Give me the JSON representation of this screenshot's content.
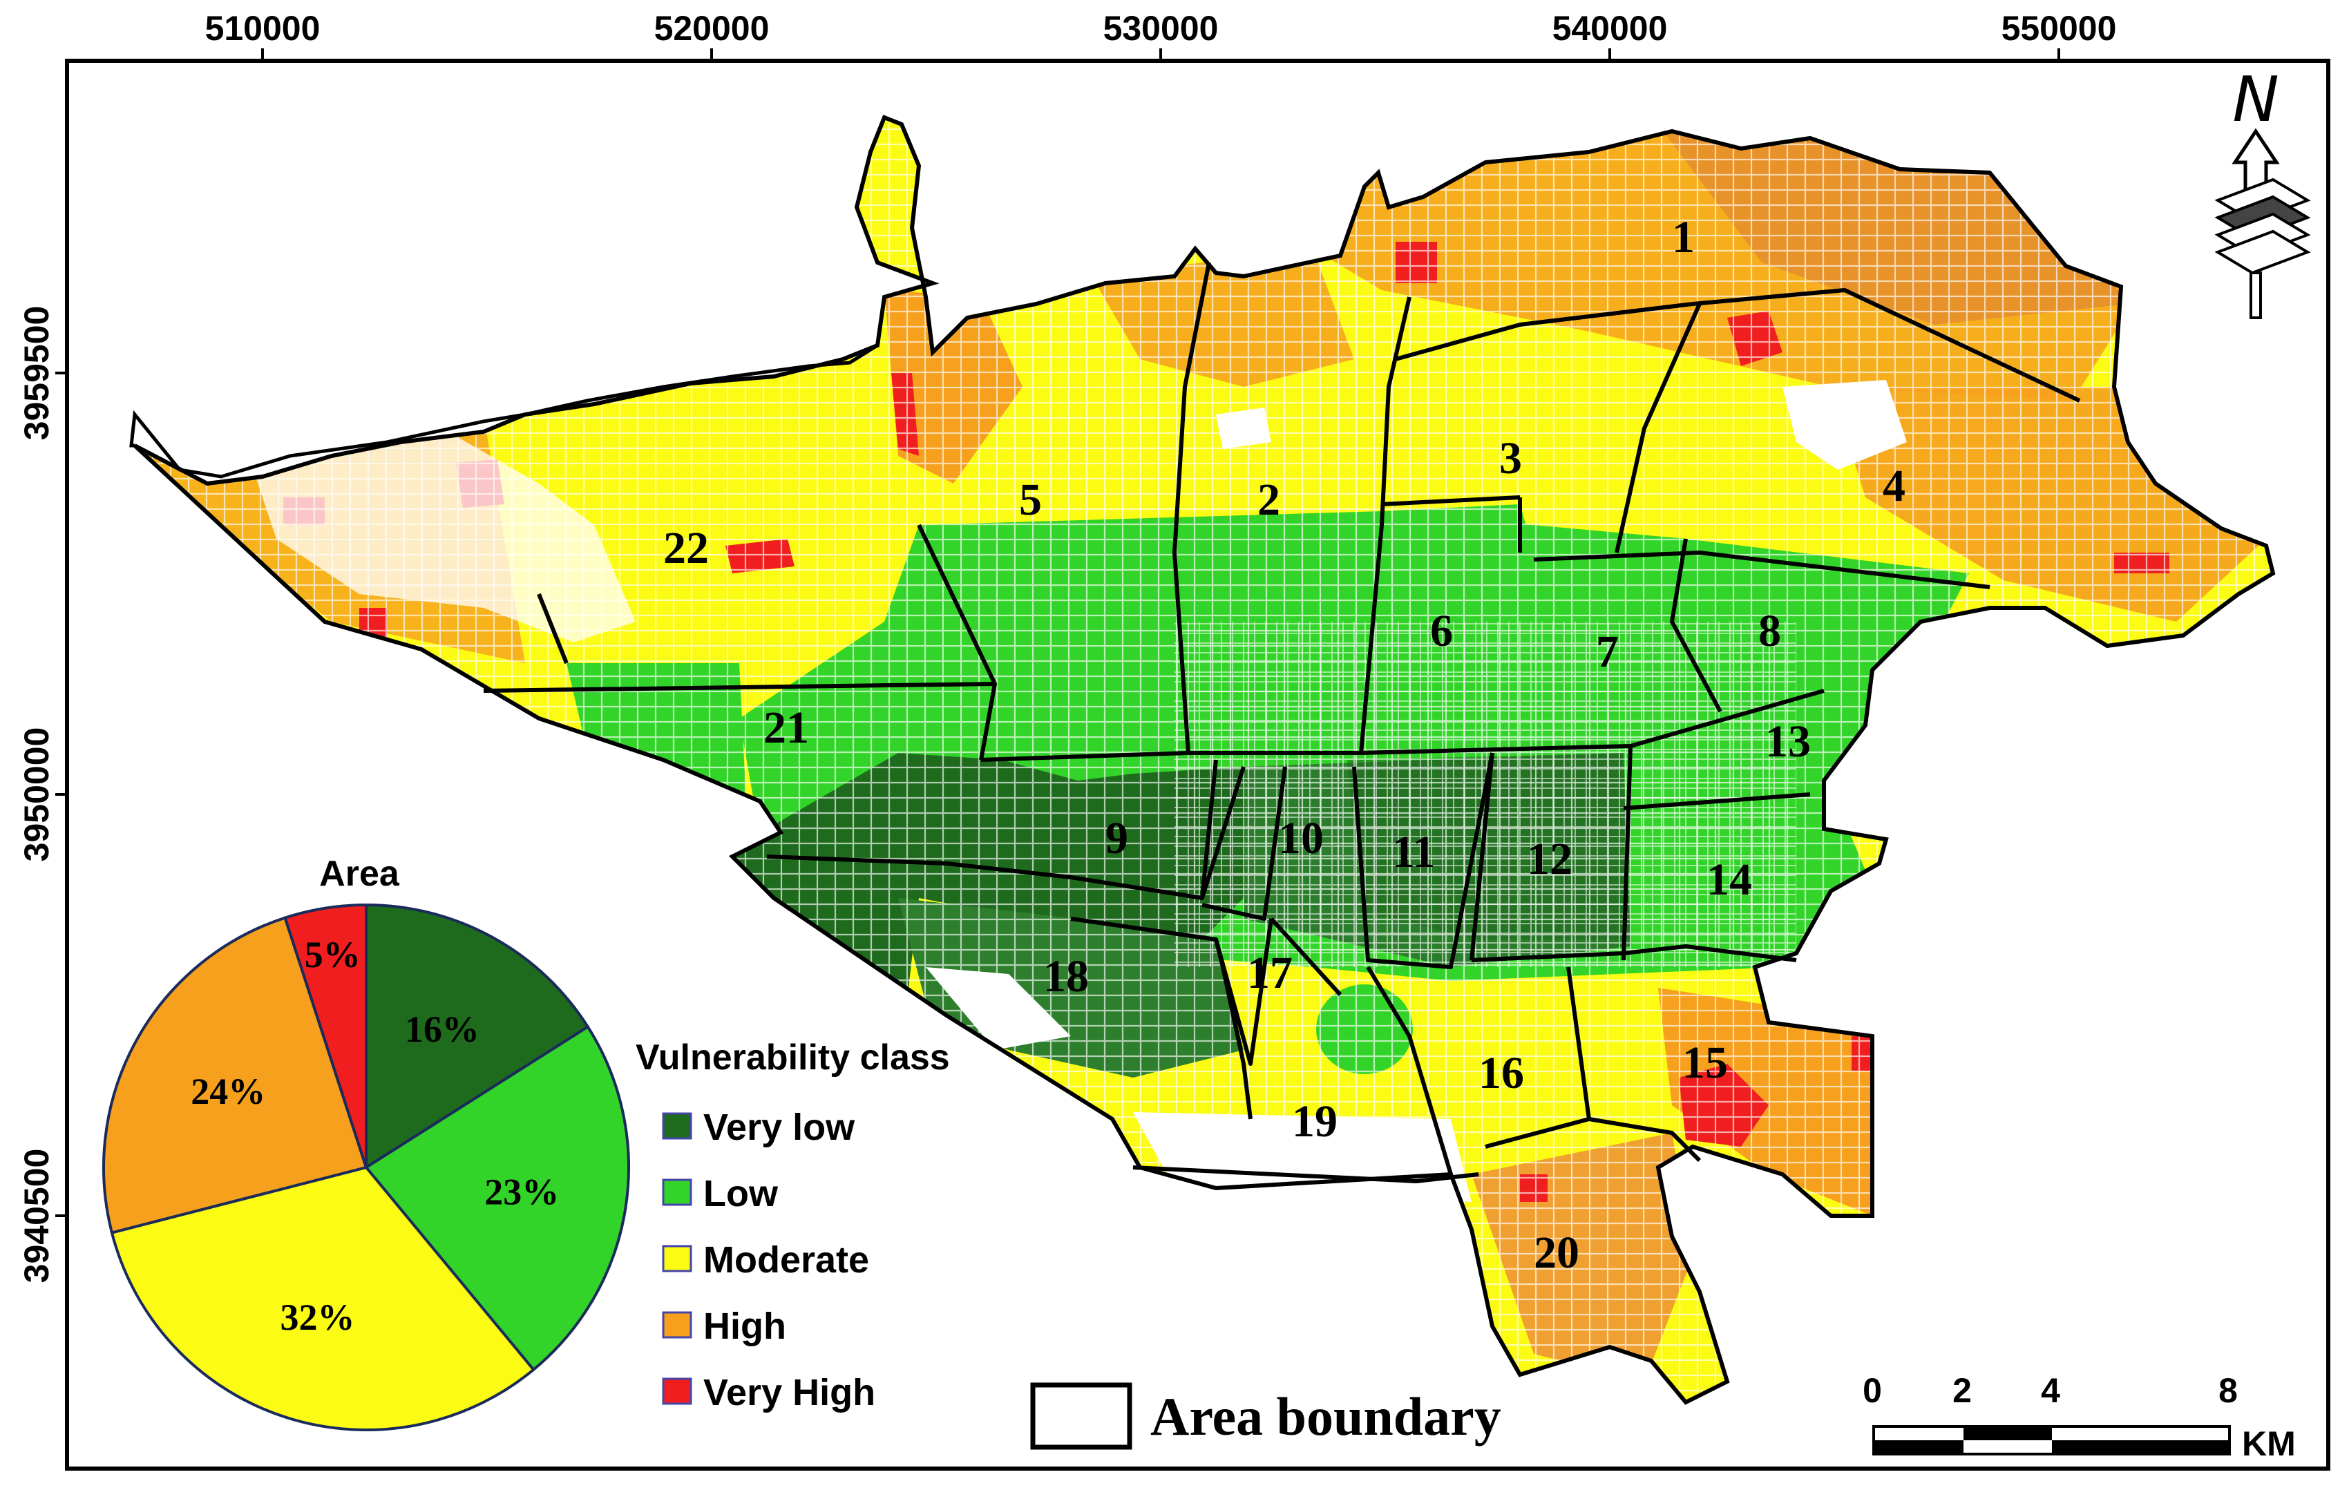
{
  "x_axis": {
    "ticks": [
      "510000",
      "520000",
      "530000",
      "540000",
      "550000"
    ]
  },
  "y_axis": {
    "ticks": [
      "3959500",
      "3950000",
      "3940500"
    ]
  },
  "north_arrow": {
    "label": "N",
    "icon": "north-arrow-icon"
  },
  "districts": [
    "1",
    "2",
    "3",
    "4",
    "5",
    "6",
    "7",
    "8",
    "9",
    "10",
    "11",
    "12",
    "13",
    "14",
    "15",
    "16",
    "17",
    "18",
    "19",
    "20",
    "21",
    "22"
  ],
  "pie": {
    "title": "Area",
    "slices": [
      {
        "class": "Very low",
        "value": 16,
        "label": "16%",
        "color": "#1e6b1e"
      },
      {
        "class": "Low",
        "value": 23,
        "label": "23%",
        "color": "#33d42a"
      },
      {
        "class": "Moderate",
        "value": 32,
        "label": "32%",
        "color": "#fbfb14"
      },
      {
        "class": "High",
        "value": 24,
        "label": "24%",
        "color": "#f6a01e"
      },
      {
        "class": "Very High",
        "value": 5,
        "label": "5%",
        "color": "#f01e1e"
      }
    ]
  },
  "legend": {
    "title": "Vulnerability class",
    "items": [
      {
        "label": "Very low",
        "color": "#1e6b1e"
      },
      {
        "label": "Low",
        "color": "#33d42a"
      },
      {
        "label": "Moderate",
        "color": "#fbfb14"
      },
      {
        "label": "High",
        "color": "#f6a01e"
      },
      {
        "label": "Very High",
        "color": "#f01e1e"
      }
    ]
  },
  "boundary_legend": {
    "label": "Area boundary"
  },
  "scale_bar": {
    "ticks": [
      "0",
      "2",
      "4",
      "8"
    ],
    "unit": "KM"
  }
}
